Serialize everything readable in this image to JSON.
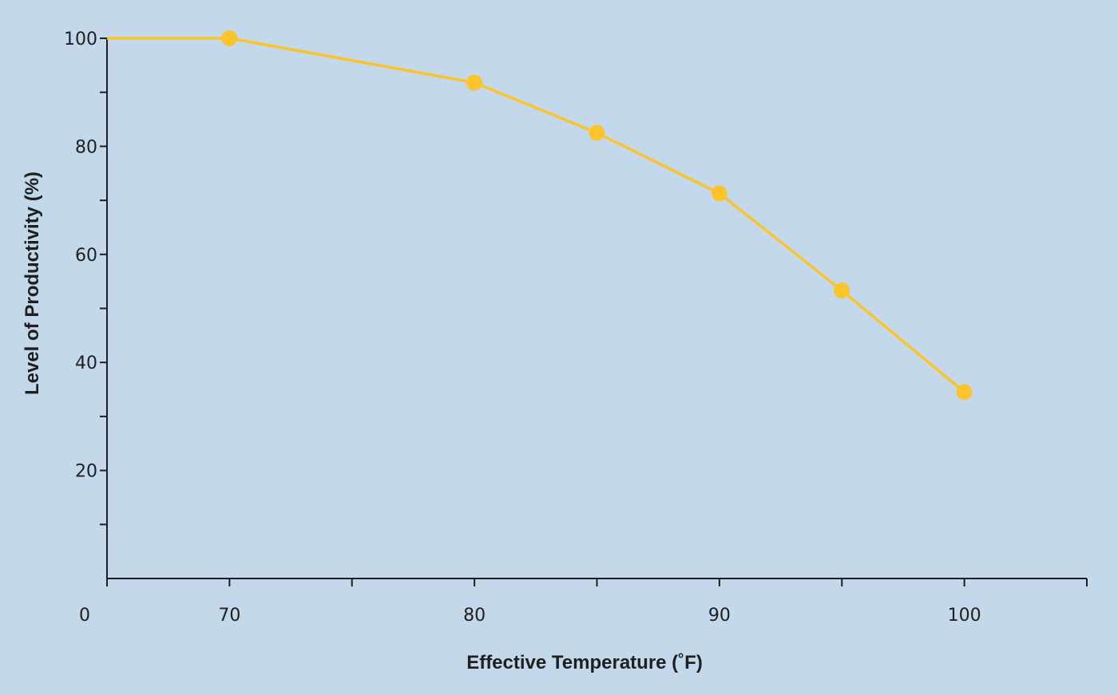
{
  "colors": {
    "background": "#c3d8ea",
    "series": "#fbc42c",
    "axis": "#1f1f1f"
  },
  "chart_data": {
    "type": "line",
    "title": "",
    "xlabel": "Effective Temperature (˚F)",
    "ylabel": "Level of Productivity (%)",
    "x_origin_label": "0",
    "x_broken_axis": true,
    "xlim": [
      65,
      105
    ],
    "ylim": [
      0,
      100
    ],
    "x_ticks": [
      70,
      75,
      80,
      85,
      90,
      95,
      100,
      105
    ],
    "x_tick_labels": [
      {
        "value": 70,
        "label": "70"
      },
      {
        "value": 80,
        "label": "80"
      },
      {
        "value": 90,
        "label": "90"
      },
      {
        "value": 100,
        "label": "100"
      }
    ],
    "y_ticks": [
      10,
      20,
      30,
      40,
      50,
      60,
      70,
      80,
      90,
      100
    ],
    "y_tick_labels": [
      {
        "value": 20,
        "label": "20"
      },
      {
        "value": 40,
        "label": "40"
      },
      {
        "value": 60,
        "label": "60"
      },
      {
        "value": 80,
        "label": "80"
      },
      {
        "value": 100,
        "label": "100"
      }
    ],
    "grid": false,
    "series": [
      {
        "x": [
          65,
          70,
          80,
          85,
          90,
          95,
          100
        ],
        "y": [
          100,
          100,
          91.8,
          82.5,
          71.3,
          53.3,
          34.5
        ],
        "markers": [
          false,
          true,
          true,
          true,
          true,
          true,
          true
        ]
      }
    ]
  }
}
